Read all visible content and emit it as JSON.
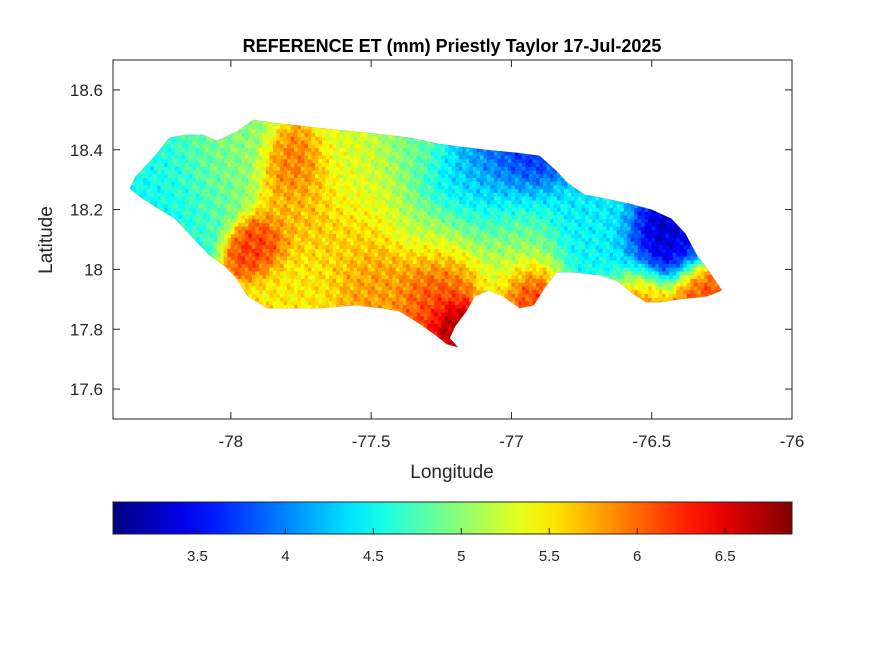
{
  "chart_data": {
    "type": "heatmap",
    "title": "REFERENCE ET (mm) Priestly Taylor 17-Jul-2025",
    "xlabel": "Longitude",
    "ylabel": "Latitude",
    "xlim": [
      -78.42,
      -76.0
    ],
    "ylim": [
      17.5,
      18.7
    ],
    "xticks": [
      -78,
      -77.5,
      -77,
      -76.5,
      -76
    ],
    "xtick_labels": [
      "-78",
      "-77.5",
      "-77",
      "-76.5",
      "-76"
    ],
    "yticks": [
      17.6,
      17.8,
      18.0,
      18.2,
      18.4,
      18.6
    ],
    "ytick_labels": [
      "17.6",
      "17.8",
      "18",
      "18.2",
      "18.4",
      "18.6"
    ],
    "grid": false,
    "colormap": "jet",
    "colorbar": {
      "orientation": "horizontal",
      "placement": "below",
      "range": [
        3.02,
        6.88
      ],
      "ticks": [
        3.5,
        4.0,
        4.5,
        5.0,
        5.5,
        6.0,
        6.5
      ],
      "tick_labels": [
        "3.5",
        "4",
        "4.5",
        "5",
        "5.5",
        "6",
        "6.5"
      ]
    },
    "region_outline": [
      [
        -78.36,
        18.27
      ],
      [
        -78.34,
        18.31
      ],
      [
        -78.31,
        18.34
      ],
      [
        -78.27,
        18.38
      ],
      [
        -78.22,
        18.44
      ],
      [
        -78.16,
        18.45
      ],
      [
        -78.1,
        18.45
      ],
      [
        -78.05,
        18.43
      ],
      [
        -77.98,
        18.46
      ],
      [
        -77.92,
        18.5
      ],
      [
        -77.85,
        18.49
      ],
      [
        -77.75,
        18.48
      ],
      [
        -77.66,
        18.47
      ],
      [
        -77.55,
        18.46
      ],
      [
        -77.45,
        18.45
      ],
      [
        -77.36,
        18.44
      ],
      [
        -77.26,
        18.42
      ],
      [
        -77.18,
        18.41
      ],
      [
        -77.09,
        18.4
      ],
      [
        -76.98,
        18.39
      ],
      [
        -76.9,
        18.38
      ],
      [
        -76.84,
        18.33
      ],
      [
        -76.8,
        18.29
      ],
      [
        -76.74,
        18.25
      ],
      [
        -76.68,
        18.24
      ],
      [
        -76.58,
        18.22
      ],
      [
        -76.5,
        18.2
      ],
      [
        -76.43,
        18.17
      ],
      [
        -76.38,
        18.12
      ],
      [
        -76.34,
        18.05
      ],
      [
        -76.3,
        18.0
      ],
      [
        -76.25,
        17.93
      ],
      [
        -76.3,
        17.91
      ],
      [
        -76.4,
        17.9
      ],
      [
        -76.47,
        17.89
      ],
      [
        -76.52,
        17.89
      ],
      [
        -76.57,
        17.92
      ],
      [
        -76.62,
        17.96
      ],
      [
        -76.68,
        17.98
      ],
      [
        -76.78,
        17.99
      ],
      [
        -76.84,
        17.99
      ],
      [
        -76.88,
        17.94
      ],
      [
        -76.92,
        17.88
      ],
      [
        -76.97,
        17.87
      ],
      [
        -77.03,
        17.91
      ],
      [
        -77.08,
        17.93
      ],
      [
        -77.13,
        17.91
      ],
      [
        -77.16,
        17.86
      ],
      [
        -77.2,
        17.81
      ],
      [
        -77.22,
        17.77
      ],
      [
        -77.19,
        17.74
      ],
      [
        -77.23,
        17.75
      ],
      [
        -77.27,
        17.78
      ],
      [
        -77.33,
        17.82
      ],
      [
        -77.4,
        17.86
      ],
      [
        -77.46,
        17.87
      ],
      [
        -77.56,
        17.88
      ],
      [
        -77.68,
        17.87
      ],
      [
        -77.78,
        17.87
      ],
      [
        -77.87,
        17.87
      ],
      [
        -77.94,
        17.91
      ],
      [
        -77.98,
        17.97
      ],
      [
        -78.02,
        18.01
      ],
      [
        -78.08,
        18.05
      ],
      [
        -78.14,
        18.11
      ],
      [
        -78.2,
        18.17
      ],
      [
        -78.27,
        18.21
      ],
      [
        -78.32,
        18.24
      ]
    ],
    "value_centers": [
      {
        "lon": -78.2,
        "lat": 18.3,
        "value": 4.5,
        "spread": 0.1
      },
      {
        "lon": -78.05,
        "lat": 18.35,
        "value": 5.0,
        "spread": 0.1
      },
      {
        "lon": -77.78,
        "lat": 18.33,
        "value": 6.0,
        "spread": 0.06
      },
      {
        "lon": -77.75,
        "lat": 18.2,
        "value": 5.7,
        "spread": 0.08
      },
      {
        "lon": -77.9,
        "lat": 18.08,
        "value": 6.2,
        "spread": 0.05
      },
      {
        "lon": -77.55,
        "lat": 18.3,
        "value": 5.3,
        "spread": 0.1
      },
      {
        "lon": -77.35,
        "lat": 18.38,
        "value": 4.9,
        "spread": 0.08
      },
      {
        "lon": -77.05,
        "lat": 18.3,
        "value": 3.9,
        "spread": 0.12
      },
      {
        "lon": -76.95,
        "lat": 18.36,
        "value": 3.5,
        "spread": 0.07
      },
      {
        "lon": -77.2,
        "lat": 18.28,
        "value": 4.3,
        "spread": 0.08
      },
      {
        "lon": -77.25,
        "lat": 18.12,
        "value": 5.2,
        "spread": 0.1
      },
      {
        "lon": -77.0,
        "lat": 18.15,
        "value": 5.0,
        "spread": 0.1
      },
      {
        "lon": -76.75,
        "lat": 18.18,
        "value": 4.4,
        "spread": 0.08
      },
      {
        "lon": -76.5,
        "lat": 18.07,
        "value": 3.2,
        "spread": 0.07
      },
      {
        "lon": -76.4,
        "lat": 18.05,
        "value": 3.5,
        "spread": 0.05
      },
      {
        "lon": -76.65,
        "lat": 18.05,
        "value": 4.5,
        "spread": 0.08
      },
      {
        "lon": -77.25,
        "lat": 17.95,
        "value": 6.2,
        "spread": 0.08
      },
      {
        "lon": -77.2,
        "lat": 17.82,
        "value": 6.8,
        "spread": 0.04
      },
      {
        "lon": -76.95,
        "lat": 17.93,
        "value": 6.5,
        "spread": 0.05
      },
      {
        "lon": -76.35,
        "lat": 17.95,
        "value": 6.1,
        "spread": 0.05
      },
      {
        "lon": -76.55,
        "lat": 17.92,
        "value": 5.9,
        "spread": 0.06
      },
      {
        "lon": -77.5,
        "lat": 17.95,
        "value": 5.8,
        "spread": 0.08
      },
      {
        "lon": -77.75,
        "lat": 17.95,
        "value": 5.5,
        "spread": 0.08
      },
      {
        "lon": -77.6,
        "lat": 18.1,
        "value": 5.6,
        "spread": 0.08
      },
      {
        "lon": -77.0,
        "lat": 18.0,
        "value": 5.3,
        "spread": 0.08
      }
    ]
  }
}
